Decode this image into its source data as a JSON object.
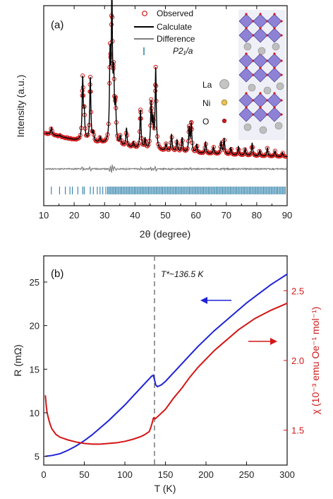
{
  "colors": {
    "observed": "#d0191a",
    "calculate": "#000000",
    "difference": "#7f7f7f",
    "bragg": "#2a7fa8",
    "resistance": "#1f23d6",
    "susceptibility": "#d41515",
    "tstar_line": "#808080",
    "la_atom": "#bfbfbf",
    "ni_atom": "#e1b12c",
    "o_atom": "#d0191a",
    "octahedron": "#7b6fd0"
  },
  "chart_data": [
    {
      "type": "scatter",
      "panel": "(a)",
      "xlabel": "2θ (degree)",
      "ylabel": "Intensity (a.u.)",
      "xlim": [
        10,
        90
      ],
      "xticks": [
        "10",
        "20",
        "30",
        "40",
        "50",
        "60",
        "70",
        "80",
        "90"
      ],
      "legend_position": "top-center",
      "legend": [
        {
          "name": "Observed",
          "marker": "open-circle"
        },
        {
          "name": "Calculate",
          "marker": "line"
        },
        {
          "name": "Difference",
          "marker": "line"
        },
        {
          "name": "P2₁/a",
          "marker": "tick"
        }
      ],
      "atoms": [
        {
          "label": "La",
          "symbol": "large-grey-sphere"
        },
        {
          "label": "Ni",
          "symbol": "small-yellow-sphere"
        },
        {
          "label": "O",
          "symbol": "small-red-sphere"
        }
      ],
      "background": [
        [
          10,
          0.2
        ],
        [
          14,
          0.18
        ],
        [
          20,
          0.15
        ],
        [
          30,
          0.12
        ],
        [
          40,
          0.09
        ],
        [
          50,
          0.07
        ],
        [
          60,
          0.055
        ],
        [
          70,
          0.045
        ],
        [
          80,
          0.035
        ],
        [
          90,
          0.03
        ]
      ],
      "peaks": [
        {
          "x": 12.5,
          "h": 0.05
        },
        {
          "x": 15.3,
          "h": 0.01
        },
        {
          "x": 22.8,
          "h": 0.43
        },
        {
          "x": 23.3,
          "h": 0.17
        },
        {
          "x": 25.3,
          "h": 0.45
        },
        {
          "x": 26.3,
          "h": 0.06
        },
        {
          "x": 28.5,
          "h": 0.04
        },
        {
          "x": 31.8,
          "h": 0.58
        },
        {
          "x": 32.4,
          "h": 1.0
        },
        {
          "x": 33.0,
          "h": 0.42
        },
        {
          "x": 33.6,
          "h": 0.25
        },
        {
          "x": 35.2,
          "h": 0.06
        },
        {
          "x": 37.2,
          "h": 0.13
        },
        {
          "x": 39.5,
          "h": 0.04
        },
        {
          "x": 41.8,
          "h": 0.27
        },
        {
          "x": 43.3,
          "h": 0.07
        },
        {
          "x": 45.3,
          "h": 0.32
        },
        {
          "x": 45.9,
          "h": 0.18
        },
        {
          "x": 46.8,
          "h": 0.57
        },
        {
          "x": 50.2,
          "h": 0.05
        },
        {
          "x": 52.0,
          "h": 0.12
        },
        {
          "x": 53.8,
          "h": 0.08
        },
        {
          "x": 55.5,
          "h": 0.1
        },
        {
          "x": 57.8,
          "h": 0.17
        },
        {
          "x": 58.5,
          "h": 0.2
        },
        {
          "x": 60.3,
          "h": 0.06
        },
        {
          "x": 63.2,
          "h": 0.08
        },
        {
          "x": 65.8,
          "h": 0.05
        },
        {
          "x": 68.3,
          "h": 0.09
        },
        {
          "x": 69.3,
          "h": 0.11
        },
        {
          "x": 71.5,
          "h": 0.05
        },
        {
          "x": 74.0,
          "h": 0.06
        },
        {
          "x": 76.2,
          "h": 0.05
        },
        {
          "x": 78.5,
          "h": 0.09
        },
        {
          "x": 81.0,
          "h": 0.04
        },
        {
          "x": 83.5,
          "h": 0.06
        },
        {
          "x": 86.0,
          "h": 0.04
        },
        {
          "x": 88.5,
          "h": 0.03
        }
      ],
      "bragg_positions_sparse": [
        12.5,
        15.2,
        17.1,
        18.6,
        19.4,
        21.2,
        22.8,
        23.3,
        25.3,
        26.3,
        27.6,
        28.5,
        29.4,
        30.4
      ]
    },
    {
      "type": "line",
      "panel": "(b)",
      "xlabel": "T (K)",
      "ylabel_left": "R (mΩ)",
      "ylabel_right": "χ (10⁻³ emu Oe⁻¹ mol⁻¹)",
      "xlim": [
        0,
        300
      ],
      "ylim_left": [
        4,
        28
      ],
      "ylim_right": [
        1.25,
        2.75
      ],
      "xticks": [
        "0",
        "50",
        "100",
        "150",
        "200",
        "250",
        "300"
      ],
      "yticks_left": [
        "5",
        "10",
        "15",
        "20",
        "25"
      ],
      "yticks_right": [
        "1.5",
        "2.0",
        "2.5"
      ],
      "annotation": "T*~136.5 K",
      "tstar": 136.5,
      "series": [
        {
          "axis": "left",
          "x": [
            2,
            10,
            20,
            30,
            40,
            50,
            60,
            70,
            80,
            90,
            100,
            110,
            120,
            125,
            130,
            133,
            135,
            136.5,
            138,
            140,
            145,
            150,
            160,
            170,
            180,
            190,
            200,
            210,
            220,
            230,
            240,
            250,
            260,
            270,
            280,
            290,
            300
          ],
          "values": [
            5.0,
            5.1,
            5.3,
            5.7,
            6.2,
            6.8,
            7.5,
            8.3,
            9.1,
            10.0,
            10.9,
            11.9,
            12.9,
            13.4,
            13.9,
            14.2,
            14.3,
            13.8,
            13.2,
            13.0,
            13.2,
            13.6,
            14.6,
            15.6,
            16.6,
            17.6,
            18.5,
            19.4,
            20.2,
            21.0,
            21.8,
            22.6,
            23.3,
            24.0,
            24.7,
            25.3,
            25.9
          ]
        },
        {
          "axis": "right",
          "x": [
            2,
            3,
            4,
            6,
            8,
            10,
            15,
            20,
            30,
            40,
            50,
            60,
            70,
            80,
            90,
            100,
            110,
            120,
            125,
            130,
            132,
            134,
            135,
            136,
            137,
            138,
            140,
            150,
            160,
            170,
            180,
            190,
            200,
            210,
            220,
            230,
            240,
            250,
            260,
            270,
            280,
            290,
            300
          ],
          "values": [
            1.75,
            1.68,
            1.63,
            1.58,
            1.54,
            1.51,
            1.47,
            1.45,
            1.43,
            1.415,
            1.405,
            1.4,
            1.4,
            1.405,
            1.41,
            1.42,
            1.435,
            1.455,
            1.47,
            1.49,
            1.52,
            1.56,
            1.585,
            1.59,
            1.58,
            1.585,
            1.595,
            1.65,
            1.73,
            1.8,
            1.88,
            1.95,
            2.01,
            2.07,
            2.12,
            2.17,
            2.22,
            2.26,
            2.3,
            2.33,
            2.36,
            2.385,
            2.41
          ]
        }
      ]
    }
  ]
}
